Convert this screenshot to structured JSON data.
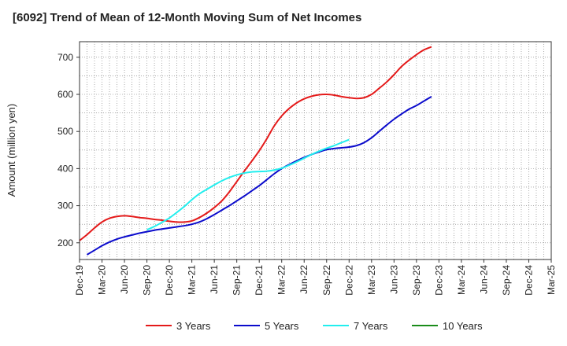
{
  "chart_data": {
    "type": "line",
    "title": "[6092]  Trend of Mean of 12-Month Moving Sum of Net Incomes",
    "xlabel": "",
    "ylabel": "Amount (million yen)",
    "ylim": [
      155,
      742
    ],
    "yticks": [
      200,
      300,
      400,
      500,
      600,
      700
    ],
    "x_ticks": [
      "Dec-19",
      "Mar-20",
      "Jun-20",
      "Sep-20",
      "Dec-20",
      "Mar-21",
      "Jun-21",
      "Sep-21",
      "Dec-21",
      "Mar-22",
      "Jun-22",
      "Sep-22",
      "Dec-22",
      "Mar-23",
      "Jun-23",
      "Sep-23",
      "Dec-23",
      "Mar-24",
      "Jun-24",
      "Sep-24",
      "Dec-24",
      "Mar-25"
    ],
    "grid": true,
    "legend_position": "bottom",
    "series": [
      {
        "name": "3 Years",
        "color": "#e41a1a",
        "start_index": 0,
        "values": [
          206,
          222,
          240,
          256,
          266,
          271,
          273,
          271,
          268,
          266,
          263,
          261,
          258,
          256,
          256,
          259,
          268,
          280,
          295,
          313,
          337,
          365,
          393,
          420,
          448,
          480,
          515,
          542,
          562,
          577,
          588,
          595,
          599,
          600,
          598,
          594,
          591,
          589,
          591,
          600,
          616,
          633,
          653,
          675,
          692,
          707,
          720,
          728
        ]
      },
      {
        "name": "5 Years",
        "color": "#0b0bcc",
        "start_index": 1,
        "values": [
          168,
          180,
          192,
          202,
          210,
          216,
          221,
          226,
          230,
          234,
          237,
          240,
          243,
          246,
          250,
          256,
          265,
          276,
          288,
          300,
          313,
          326,
          340,
          354,
          370,
          386,
          400,
          411,
          421,
          430,
          438,
          445,
          451,
          454,
          456,
          458,
          462,
          470,
          483,
          500,
          517,
          533,
          547,
          560,
          570,
          582,
          594
        ]
      },
      {
        "name": "7 Years",
        "color": "#22eeee",
        "start_index": 9,
        "values": [
          235,
          244,
          255,
          267,
          282,
          298,
          316,
          332,
          344,
          356,
          367,
          376,
          383,
          388,
          391,
          392,
          393,
          396,
          401,
          409,
          418,
          428,
          438,
          447,
          455,
          462,
          470,
          478
        ]
      },
      {
        "name": "10 Years",
        "color": "#1a8c1a",
        "start_index": 0,
        "values": []
      }
    ]
  }
}
